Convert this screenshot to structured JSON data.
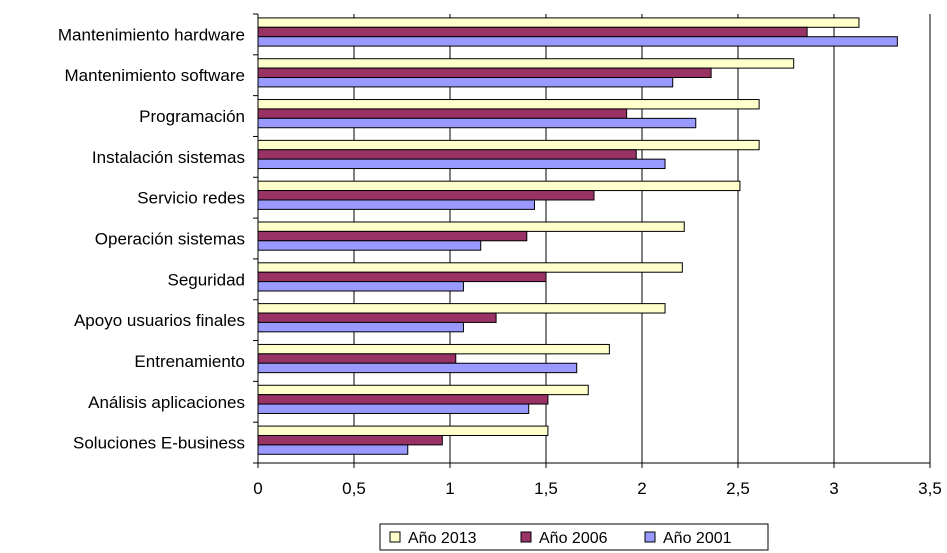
{
  "chart_data": {
    "type": "bar",
    "orientation": "horizontal",
    "title": "",
    "xlabel": "",
    "ylabel": "",
    "xlim": [
      0,
      3.5
    ],
    "grid": "vertical",
    "legend_position": "bottom",
    "categories": [
      "Mantenimiento hardware",
      "Mantenimiento software",
      "Programación",
      "Instalación sistemas",
      "Servicio redes",
      "Operación sistemas",
      "Seguridad",
      "Apoyo usuarios finales",
      "Entrenamiento",
      "Análisis aplicaciones",
      "Soluciones E-business"
    ],
    "x_ticks": [
      "0",
      "0,5",
      "1",
      "1,5",
      "2",
      "2,5",
      "3",
      "3,5"
    ],
    "x_tick_values": [
      0,
      0.5,
      1,
      1.5,
      2,
      2.5,
      3,
      3.5
    ],
    "series": [
      {
        "name": "Año 2013",
        "color": "#ffffcc",
        "values": [
          3.13,
          2.79,
          2.61,
          2.61,
          2.51,
          2.22,
          2.21,
          2.12,
          1.83,
          1.72,
          1.51
        ]
      },
      {
        "name": "Año 2006",
        "color": "#993366",
        "values": [
          2.86,
          2.36,
          1.92,
          1.97,
          1.75,
          1.4,
          1.5,
          1.24,
          1.03,
          1.51,
          0.96
        ]
      },
      {
        "name": "Año 2001",
        "color": "#9999ff",
        "values": [
          3.33,
          2.16,
          2.28,
          2.12,
          1.44,
          1.16,
          1.07,
          1.07,
          1.66,
          1.41,
          0.78
        ]
      }
    ]
  }
}
